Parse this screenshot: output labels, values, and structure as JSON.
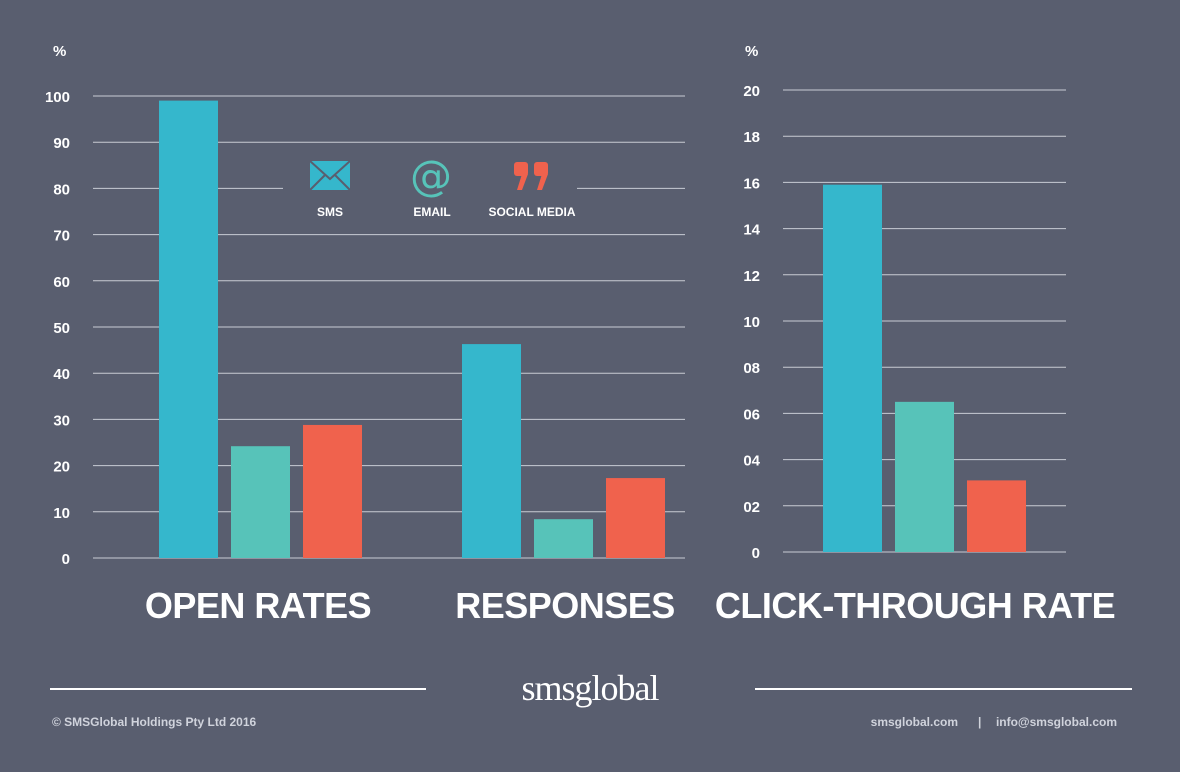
{
  "chart_data": [
    {
      "type": "bar",
      "unit_label": "%",
      "ylim": [
        0,
        100
      ],
      "yticks": [
        0,
        10,
        20,
        30,
        40,
        50,
        60,
        70,
        80,
        90,
        100
      ],
      "ytick_labels": [
        "0",
        "10",
        "20",
        "30",
        "40",
        "50",
        "60",
        "70",
        "80",
        "90",
        "100"
      ],
      "grid": true,
      "categories": [
        "OPEN RATES",
        "RESPONSES"
      ],
      "series": [
        {
          "name": "SMS",
          "values": [
            99,
            46.3
          ],
          "color": "#35b7cc"
        },
        {
          "name": "EMAIL",
          "values": [
            24.2,
            8.4
          ],
          "color": "#57c3b9"
        },
        {
          "name": "SOCIAL MEDIA",
          "values": [
            28.8,
            17.3
          ],
          "color": "#f0624d"
        }
      ]
    },
    {
      "type": "bar",
      "unit_label": "%",
      "ylim": [
        0,
        20
      ],
      "yticks": [
        0,
        2,
        4,
        6,
        8,
        10,
        12,
        14,
        16,
        18,
        20
      ],
      "ytick_labels": [
        "0",
        "02",
        "04",
        "06",
        "08",
        "10",
        "12",
        "14",
        "16",
        "18",
        "20"
      ],
      "grid": true,
      "categories": [
        "CLICK-THROUGH RATE"
      ],
      "series": [
        {
          "name": "SMS",
          "values": [
            15.9
          ],
          "color": "#35b7cc"
        },
        {
          "name": "EMAIL",
          "values": [
            6.5
          ],
          "color": "#57c3b9"
        },
        {
          "name": "SOCIAL MEDIA",
          "values": [
            3.1
          ],
          "color": "#f0624d"
        }
      ]
    }
  ],
  "legend": {
    "placement": "top-center",
    "items": [
      {
        "label": "SMS",
        "icon": "envelope-icon",
        "color": "#35b7cc"
      },
      {
        "label": "EMAIL",
        "icon": "at-sign-icon",
        "color": "#57c3b9"
      },
      {
        "label": "SOCIAL MEDIA",
        "icon": "quote-icon",
        "color": "#f0624d"
      }
    ]
  },
  "footer": {
    "logo": "smsglobal",
    "copyright": "©  SMSGlobal Holdings Pty Ltd 2016",
    "website": "smsglobal.com",
    "separator": "|",
    "email": "info@smsglobal.com"
  },
  "colors": {
    "background": "#595e6f",
    "grid": "#c9ccd4"
  }
}
